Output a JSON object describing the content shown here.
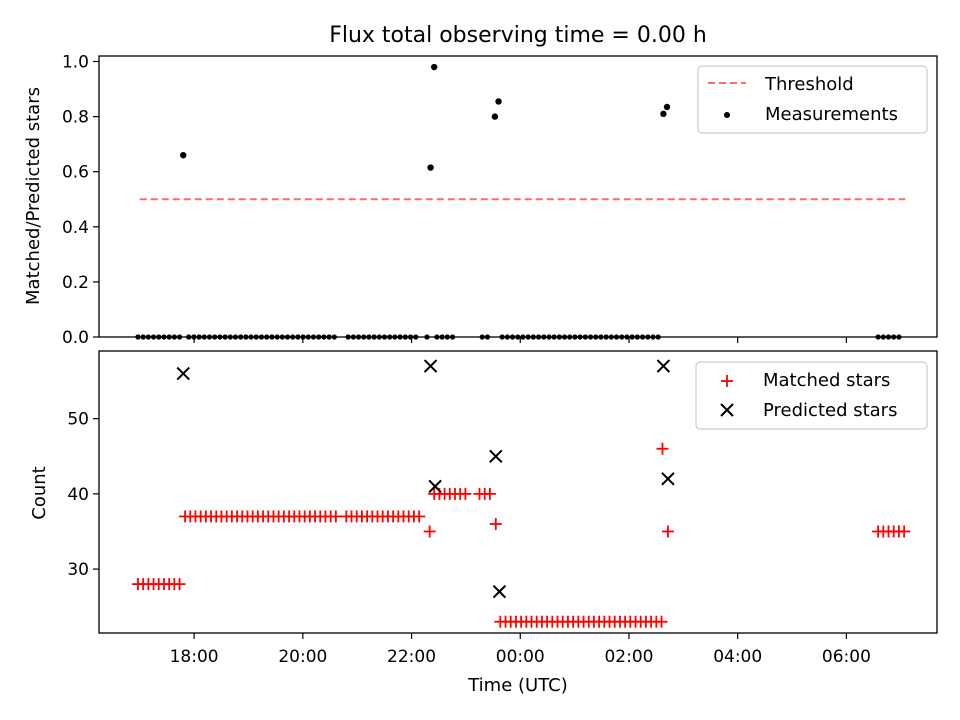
{
  "title": "Flux total observing time = 0.00 h",
  "chart_data": [
    {
      "type": "scatter",
      "ylabel": "Matched/Predicted stars",
      "xlabel": "",
      "ylim": [
        0.0,
        1.02
      ],
      "xlim": [
        "16:15",
        "07:40"
      ],
      "x_ticks": [
        "18:00",
        "20:00",
        "22:00",
        "00:00",
        "02:00",
        "04:00",
        "06:00"
      ],
      "y_ticks": [
        "0.0",
        "0.2",
        "0.4",
        "0.6",
        "0.8",
        "1.0"
      ],
      "legend_position": "top-right",
      "legend": [
        "Threshold",
        "Measurements"
      ],
      "threshold": {
        "name": "Threshold",
        "value": 0.5,
        "x": [
          "17:00",
          "07:05"
        ],
        "color": "#ff6b6b",
        "style": "dashed"
      },
      "series": [
        {
          "name": "Measurements",
          "color": "#000000",
          "points": [
            [
              "17:48",
              0.66
            ],
            [
              "22:21",
              0.615
            ],
            [
              "22:25",
              0.98
            ],
            [
              "23:32",
              0.8
            ],
            [
              "23:36",
              0.855
            ],
            [
              "02:38",
              0.81
            ],
            [
              "02:42",
              0.835
            ]
          ],
          "zero_segments": [
            [
              "16:58",
              "17:46"
            ],
            [
              "17:54",
              "20:40"
            ],
            [
              "20:50",
              "22:05"
            ],
            [
              "22:17",
              "22:20"
            ],
            [
              "22:28",
              "22:50"
            ],
            [
              "23:18",
              "23:28"
            ],
            [
              "23:40",
              "02:35"
            ],
            [
              "06:35",
              "07:00"
            ]
          ]
        }
      ]
    },
    {
      "type": "scatter",
      "ylabel": "Count",
      "xlabel": "Time (UTC)",
      "ylim": [
        21.5,
        59
      ],
      "xlim": [
        "16:15",
        "07:40"
      ],
      "x_ticks": [
        "18:00",
        "20:00",
        "22:00",
        "00:00",
        "02:00",
        "04:00",
        "06:00"
      ],
      "y_ticks": [
        "30",
        "40",
        "50"
      ],
      "legend_position": "top-right",
      "legend": [
        "Matched stars",
        "Predicted stars"
      ],
      "series": [
        {
          "name": "Matched stars",
          "marker": "plus",
          "color": "#ff0000",
          "runs": [
            {
              "from": "16:58",
              "to": "17:45",
              "value": 28
            },
            {
              "from": "17:50",
              "to": "20:40",
              "value": 37
            },
            {
              "from": "20:48",
              "to": "22:13",
              "value": 37
            },
            {
              "from": "22:25",
              "to": "23:00",
              "value": 40
            },
            {
              "from": "23:15",
              "to": "23:28",
              "value": 40
            },
            {
              "from": "23:38",
              "to": "02:38",
              "value": 23
            },
            {
              "from": "06:35",
              "to": "07:05",
              "value": 35
            }
          ],
          "points": [
            [
              "22:20",
              35
            ],
            [
              "23:33",
              36
            ],
            [
              "02:37",
              46
            ],
            [
              "02:43",
              35
            ]
          ]
        },
        {
          "name": "Predicted stars",
          "marker": "x",
          "color": "#000000",
          "points": [
            [
              "17:48",
              56
            ],
            [
              "22:21",
              57
            ],
            [
              "22:26",
              41
            ],
            [
              "23:33",
              45
            ],
            [
              "23:37",
              27
            ],
            [
              "02:38",
              57
            ],
            [
              "02:43",
              42
            ]
          ]
        }
      ]
    }
  ]
}
